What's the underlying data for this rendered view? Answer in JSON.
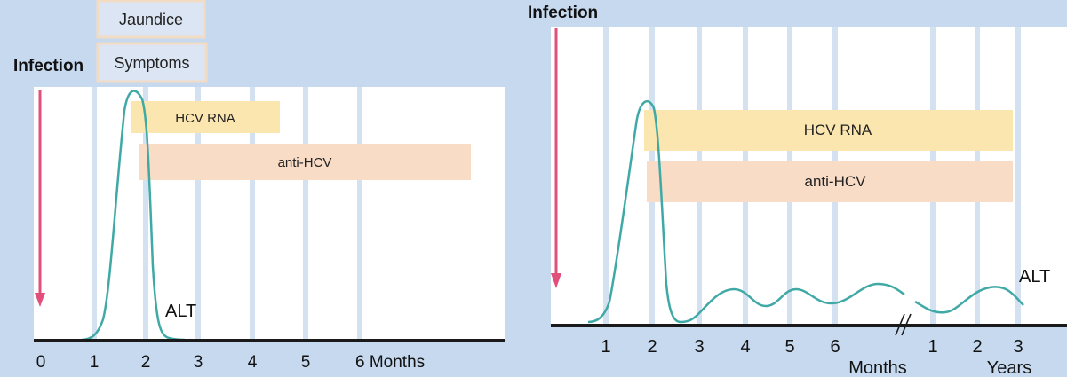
{
  "left_panel": {
    "infection_label": "Infection",
    "boxes": {
      "jaundice": "Jaundice",
      "symptoms": "Symptoms"
    },
    "bars": {
      "hcv_rna": "HCV RNA",
      "anti_hcv": "anti-HCV"
    },
    "alt_label": "ALT",
    "ticks": [
      "0",
      "1",
      "2",
      "3",
      "4",
      "5",
      "6 Months"
    ]
  },
  "right_panel": {
    "infection_label": "Infection",
    "bars": {
      "hcv_rna": "HCV RNA",
      "anti_hcv": "anti-HCV"
    },
    "alt_label": "ALT",
    "month_ticks": [
      "1",
      "2",
      "3",
      "4",
      "5",
      "6"
    ],
    "months_label": "Months",
    "year_ticks": [
      "1",
      "2",
      "3"
    ],
    "years_label": "Years"
  },
  "colors": {
    "background": "#c6d9ef",
    "panel": "#ffffff",
    "grid_line": "#d4e1f1",
    "alt_curve": "#3fa9a6",
    "infection_arrow": "#e0507a",
    "hcv_rna_bar": "#fbe6b0",
    "anti_hcv_bar": "#f8dcc6",
    "axis": "#1a1a1a"
  }
}
